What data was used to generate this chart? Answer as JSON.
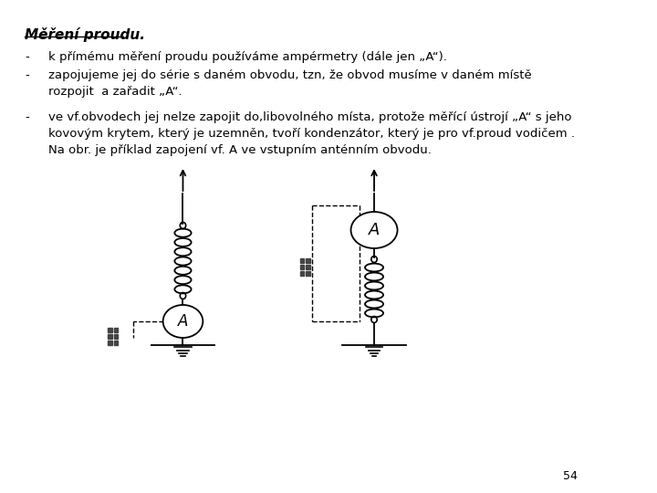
{
  "title": "Měření proudu.",
  "bg_color": "#ffffff",
  "text_color": "#000000",
  "bullet1": "k přímému měření proudu používáme ampérmetry (dále jen „A“).",
  "bullet2a": "zapojujeme jej do série s daném obvodu, tzn, že obvod musíme v daném místě",
  "bullet2b": "rozpojit  a zařadit „A“.",
  "bullet3a": "ve vf.obvodech jej nelze zapojit do,libovolného místa, protože měřící ústrojí „A“ s jeho",
  "bullet3b": "kovovým krytem, který je uzemněn, tvoří kondenzátor, který je pro vf.proud vodičem .",
  "bullet3c": "Na obr. je příklad zapojení vf. A ve vstupním anténním obvodu.",
  "page_num": "54"
}
